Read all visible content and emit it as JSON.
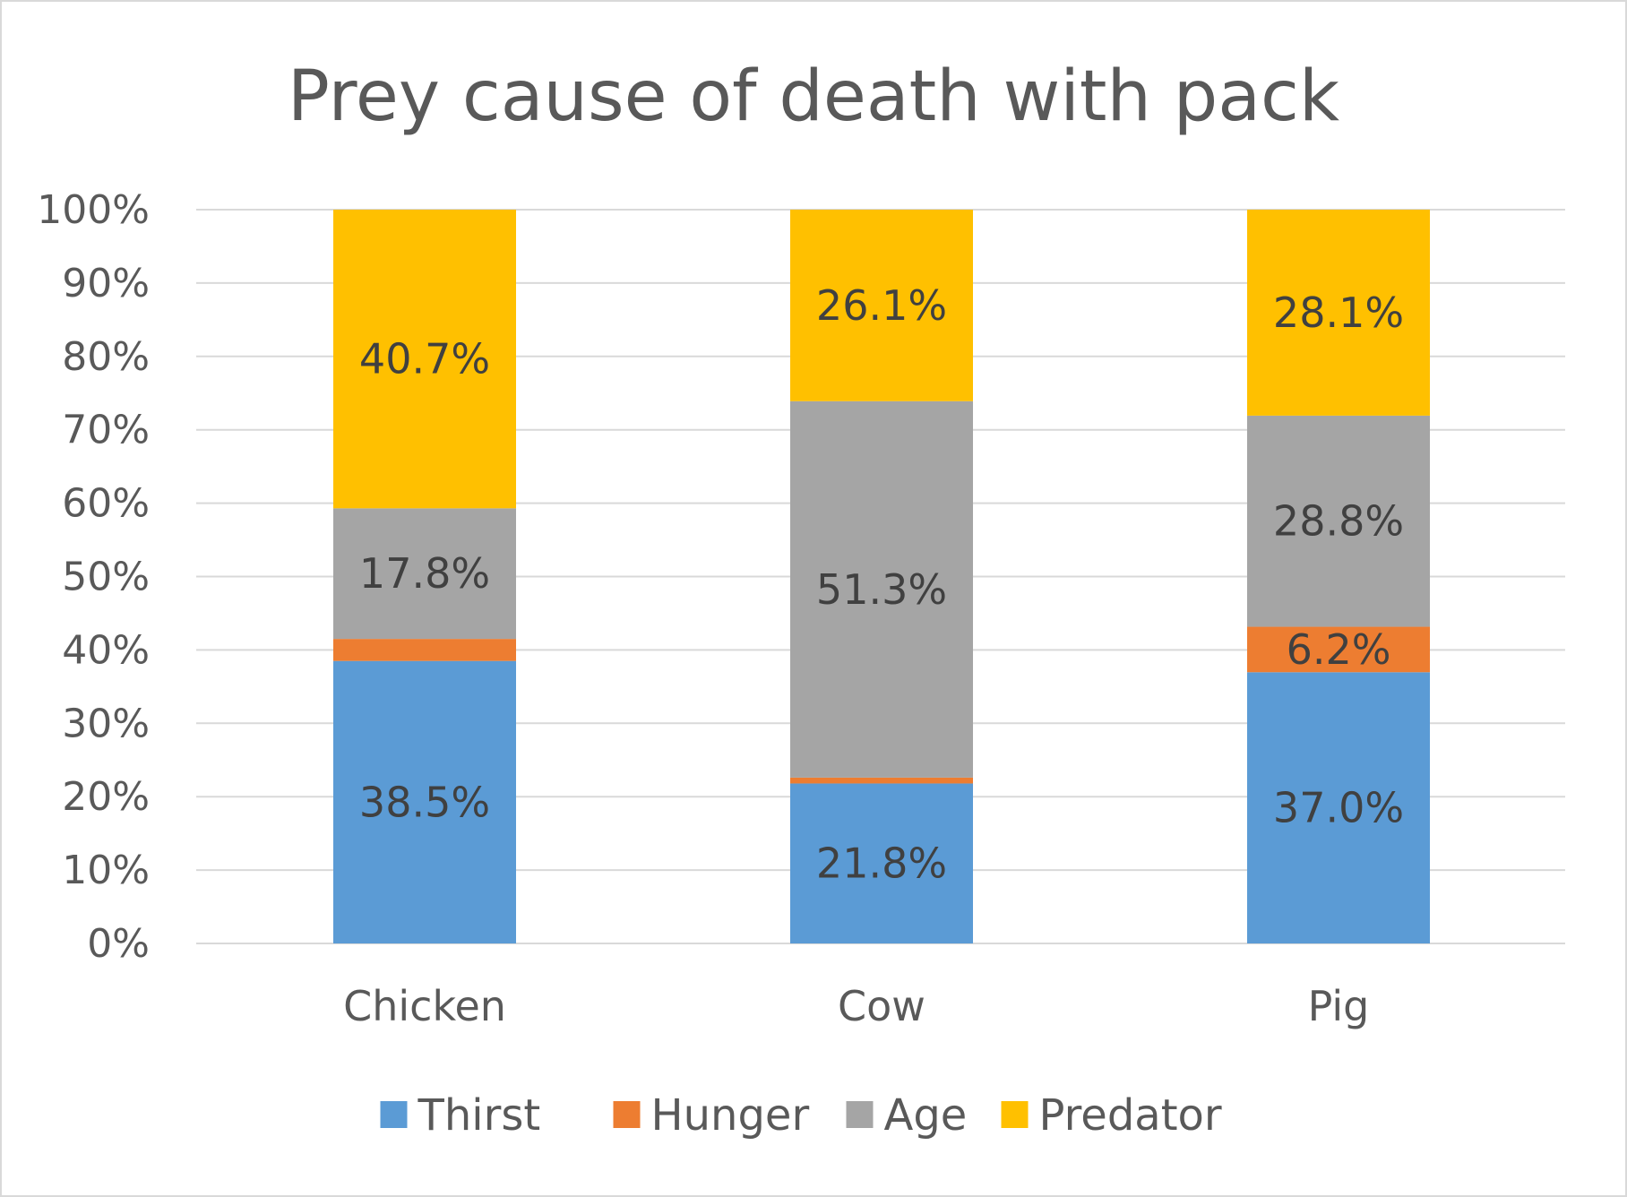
{
  "chart_data": {
    "type": "bar",
    "stacked": true,
    "percent": true,
    "title": "Prey cause of death with pack",
    "categories": [
      "Chicken",
      "Cow",
      "Pig"
    ],
    "series": [
      {
        "name": "Thirst",
        "color": "#5b9bd5",
        "values": [
          38.5,
          21.8,
          37.0
        ],
        "labels": [
          "38.5%",
          "21.8%",
          "37.0%"
        ]
      },
      {
        "name": "Hunger",
        "color": "#ed7d31",
        "values": [
          3.0,
          0.8,
          6.2
        ],
        "labels": [
          "",
          "",
          "6.2%"
        ]
      },
      {
        "name": "Age",
        "color": "#a5a5a5",
        "values": [
          17.8,
          51.3,
          28.8
        ],
        "labels": [
          "17.8%",
          "51.3%",
          "28.8%"
        ]
      },
      {
        "name": "Predator",
        "color": "#ffc000",
        "values": [
          40.7,
          26.1,
          28.1
        ],
        "labels": [
          "40.7%",
          "26.1%",
          "28.1%"
        ]
      }
    ],
    "ylim": [
      0,
      100
    ],
    "yticks": [
      "0%",
      "10%",
      "20%",
      "30%",
      "40%",
      "50%",
      "60%",
      "70%",
      "80%",
      "90%",
      "100%"
    ],
    "grid": true,
    "legend": "bottom"
  }
}
